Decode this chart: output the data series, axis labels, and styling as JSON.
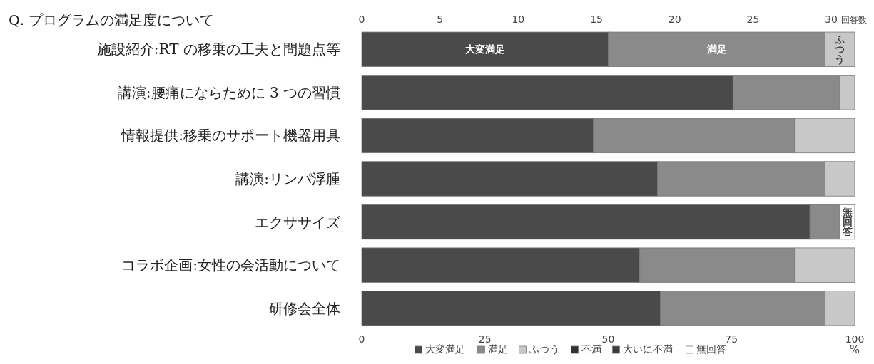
{
  "chart_data": {
    "type": "bar",
    "orientation": "horizontal",
    "stacked": true,
    "title": "Q. プログラムの満足度について",
    "xlabel": "%",
    "x2label": "回答数",
    "categories": [
      "施設紹介:RT の移乗の工夫と問題点等",
      "講演:腰痛にならために 3 つの習慣",
      "情報提供:移乗のサポート機器用具",
      "講演:リンパ浮腫",
      "エクササイズ",
      "コラボ企画:女性の会活動について",
      "研修会全体"
    ],
    "series": [
      {
        "name": "大変満足",
        "color": "#4a4a4a",
        "values": [
          50,
          75.3,
          47,
          60,
          90.9,
          56.4,
          60.6
        ]
      },
      {
        "name": "満足",
        "color": "#8a8a8a",
        "values": [
          44,
          21.7,
          40.8,
          34,
          6.1,
          31.4,
          33.4
        ]
      },
      {
        "name": "ふつう",
        "color": "#c8c8c8",
        "values": [
          6,
          3,
          12.2,
          6,
          0,
          12.2,
          6
        ]
      },
      {
        "name": "不満",
        "color": "#333333",
        "values": [
          0,
          0,
          0,
          0,
          0,
          0,
          0
        ]
      },
      {
        "name": "大いに不満",
        "color": "#3c3c3c",
        "values": [
          0,
          0,
          0,
          0,
          0,
          0,
          0
        ]
      },
      {
        "name": "無回答",
        "color": "#ffffff",
        "values": [
          0,
          0,
          0,
          0,
          3,
          0,
          0
        ]
      }
    ],
    "xlim": [
      0,
      100
    ],
    "xticks": [
      0,
      25,
      50,
      75,
      100
    ],
    "x2lim": [
      0,
      31.5
    ],
    "x2ticks": [
      0,
      5,
      10,
      15,
      20,
      25,
      30
    ],
    "annotations": [
      {
        "text": "大変満足",
        "x": 25,
        "y": "施設紹介:RT の移乗の工夫と問題点等"
      },
      {
        "text": "満足",
        "x": 72,
        "y": "施設紹介:RT の移乗の工夫と問題点等"
      },
      {
        "text": "ふつう",
        "x": 97,
        "y": "施設紹介:RT の移乗の工夫と問題点等"
      },
      {
        "text": "無回答",
        "x": 98.5,
        "y": "エクササイズ"
      }
    ],
    "legend": "bottom",
    "grid": false
  }
}
